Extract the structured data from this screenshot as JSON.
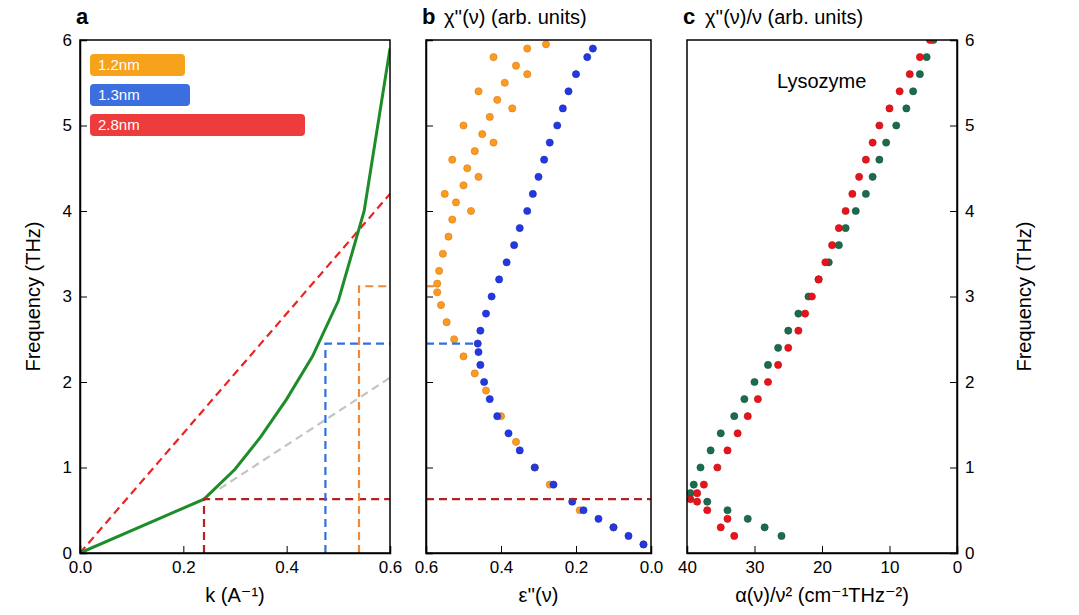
{
  "chart_data": [
    {
      "type": "line",
      "panel_label": "a",
      "x_label": "k (A⁻¹)",
      "y_label": "Frequency (THz)",
      "xlim": [
        0,
        0.6
      ],
      "xticks": [
        {
          "value": 0,
          "label": "0.0"
        },
        0.2,
        0.4,
        0.6
      ],
      "ylim": [
        0,
        6
      ],
      "yticks": [
        0,
        1,
        2,
        3,
        4,
        5,
        6
      ],
      "annotations": [
        {
          "text": "1.2nm",
          "color": "#f7a21b"
        },
        {
          "text": "1.3nm",
          "color": "#3b6fe0"
        },
        {
          "text": "2.8nm",
          "color": "#ee3b3b"
        }
      ],
      "series": [
        {
          "type": "line",
          "line_style": "dashed",
          "color": "#ee2222",
          "x": [
            0,
            0.6
          ],
          "values": [
            0,
            4.2
          ]
        },
        {
          "type": "line",
          "line_style": "dashed",
          "color": "#c4c4c4",
          "x": [
            0.27,
            0.6
          ],
          "values": [
            0.75,
            2.05
          ]
        },
        {
          "type": "line",
          "line_style": "solid",
          "color": "#1e8c28",
          "x": [
            0,
            0.24,
            0.3,
            0.35,
            0.4,
            0.45,
            0.5,
            0.55,
            0.6
          ],
          "values": [
            0,
            0.63,
            0.98,
            1.36,
            1.8,
            2.3,
            2.95,
            4.0,
            5.9
          ]
        },
        {
          "type": "line",
          "line_style": "dashed",
          "color": "#b22222",
          "x": [
            0.24,
            0.24,
            0.6
          ],
          "values": [
            0,
            0.63,
            0.63
          ]
        },
        {
          "type": "line",
          "line_style": "dashed",
          "color": "#2f6fe4",
          "x": [
            0.475,
            0.475,
            0.6
          ],
          "values": [
            0,
            2.45,
            2.45
          ]
        },
        {
          "type": "line",
          "line_style": "dashed",
          "color": "#f0883a",
          "x": [
            0.54,
            0.54,
            0.6
          ],
          "values": [
            0,
            3.12,
            3.12
          ]
        }
      ]
    },
    {
      "type": "scatter",
      "panel_label": "b",
      "title": "χ''(ν) (arb. units)",
      "x_label": "ε''(ν)",
      "xlim": [
        0.6,
        0.0
      ],
      "xticks": [
        0.6,
        0.4,
        0.2,
        {
          "value": 0,
          "label": "0.0"
        }
      ],
      "ylim": [
        0,
        6
      ],
      "yticks": [
        0,
        1,
        2,
        3,
        4,
        5,
        6
      ],
      "tick_labels": "x",
      "series": [
        {
          "type": "scatter",
          "marker": "circle",
          "color": "#ff9a1f",
          "x": [
            0.02,
            0.1,
            0.19,
            0.27,
            0.31,
            0.36,
            0.4,
            0.44,
            0.47,
            0.5,
            0.525,
            0.545,
            0.56,
            0.57,
            0.57,
            0.565,
            0.555,
            0.54,
            0.53,
            0.48,
            0.52,
            0.55,
            0.5,
            0.46,
            0.49,
            0.53,
            0.47,
            0.42,
            0.45,
            0.5,
            0.43,
            0.37,
            0.41,
            0.46,
            0.39,
            0.33,
            0.36,
            0.42,
            0.33,
            0.28
          ],
          "values": [
            0.1,
            0.3,
            0.5,
            0.8,
            1.0,
            1.3,
            1.6,
            1.9,
            2.1,
            2.3,
            2.5,
            2.7,
            2.9,
            3.05,
            3.15,
            3.3,
            3.5,
            3.7,
            3.9,
            4.0,
            4.1,
            4.2,
            4.3,
            4.4,
            4.5,
            4.6,
            4.7,
            4.8,
            4.9,
            5.0,
            5.1,
            5.2,
            5.3,
            5.4,
            5.5,
            5.6,
            5.7,
            5.8,
            5.9,
            5.95
          ]
        },
        {
          "type": "scatter",
          "marker": "circle",
          "color": "#2338e0",
          "x": [
            0.02,
            0.06,
            0.1,
            0.14,
            0.18,
            0.21,
            0.26,
            0.31,
            0.35,
            0.38,
            0.41,
            0.43,
            0.445,
            0.455,
            0.46,
            0.462,
            0.455,
            0.44,
            0.425,
            0.405,
            0.385,
            0.365,
            0.35,
            0.33,
            0.315,
            0.3,
            0.285,
            0.27,
            0.25,
            0.235,
            0.22,
            0.2,
            0.17,
            0.155
          ],
          "values": [
            0.1,
            0.2,
            0.3,
            0.4,
            0.5,
            0.6,
            0.8,
            1.0,
            1.2,
            1.4,
            1.6,
            1.8,
            2.0,
            2.2,
            2.35,
            2.45,
            2.6,
            2.8,
            3.0,
            3.2,
            3.4,
            3.6,
            3.8,
            4.0,
            4.2,
            4.4,
            4.6,
            4.8,
            5.0,
            5.2,
            5.4,
            5.6,
            5.8,
            5.9
          ]
        },
        {
          "type": "line",
          "line_style": "dashed",
          "color": "#f0883a",
          "x": [
            0.6,
            0.57
          ],
          "values": [
            3.12,
            3.12
          ]
        },
        {
          "type": "line",
          "line_style": "dashed",
          "color": "#2f6fe4",
          "x": [
            0.6,
            0.462
          ],
          "values": [
            2.45,
            2.45
          ]
        },
        {
          "type": "line",
          "line_style": "dashed",
          "color": "#b22222",
          "x": [
            0.6,
            0.0
          ],
          "values": [
            0.63,
            0.63
          ]
        }
      ]
    },
    {
      "type": "scatter",
      "panel_label": "c",
      "title": "χ''(ν)/ν (arb. units)",
      "x_label": "α(ν)/ν² (cm⁻¹THz⁻²)",
      "y_label": "Frequency (THz)",
      "xlim": [
        40,
        0
      ],
      "xticks": [
        40,
        30,
        20,
        10,
        0
      ],
      "ylim": [
        0,
        6
      ],
      "yticks": [
        0,
        1,
        2,
        3,
        4,
        5,
        6
      ],
      "annotations": [
        {
          "text": "Lysozyme"
        }
      ],
      "series": [
        {
          "type": "scatter",
          "marker": "circle",
          "color": "#1b6b4c",
          "x": [
            26,
            28.5,
            31,
            34,
            37,
            39.5,
            39,
            38,
            36.5,
            35,
            33,
            31.5,
            30,
            28,
            26.5,
            25,
            23.5,
            22,
            20.5,
            19,
            17.5,
            16.5,
            15,
            13.5,
            12.5,
            11.5,
            10.5,
            9,
            7.5,
            6.5,
            5.5,
            4.5,
            3.5
          ],
          "values": [
            0.2,
            0.3,
            0.4,
            0.5,
            0.6,
            0.7,
            0.8,
            1.0,
            1.2,
            1.4,
            1.6,
            1.8,
            2.0,
            2.2,
            2.4,
            2.6,
            2.8,
            3.0,
            3.2,
            3.4,
            3.6,
            3.8,
            4.0,
            4.2,
            4.4,
            4.6,
            4.8,
            5.0,
            5.2,
            5.4,
            5.6,
            5.8,
            6.0
          ]
        },
        {
          "type": "scatter",
          "marker": "circle",
          "color": "#e8141b",
          "x": [
            33,
            35,
            34,
            37,
            38.5,
            39.5,
            38.5,
            37.5,
            35.5,
            34,
            32.5,
            31,
            29.5,
            28,
            26.5,
            25,
            23.5,
            22.5,
            21.5,
            20.5,
            19.5,
            18.5,
            17.5,
            16.5,
            15.5,
            14.5,
            13.5,
            12.5,
            11.5,
            10,
            8.5,
            7,
            5.5,
            4
          ],
          "values": [
            0.2,
            0.3,
            0.4,
            0.5,
            0.6,
            0.63,
            0.7,
            0.8,
            1.0,
            1.2,
            1.4,
            1.6,
            1.8,
            2.0,
            2.2,
            2.4,
            2.6,
            2.8,
            3.0,
            3.2,
            3.4,
            3.6,
            3.8,
            4.0,
            4.2,
            4.4,
            4.6,
            4.8,
            5.0,
            5.2,
            5.4,
            5.6,
            5.8,
            6.0
          ]
        },
        {
          "type": "line",
          "line_style": "dashed",
          "color": "#b22222",
          "x": [
            40,
            39
          ],
          "values": [
            0.63,
            0.63
          ]
        }
      ]
    }
  ]
}
